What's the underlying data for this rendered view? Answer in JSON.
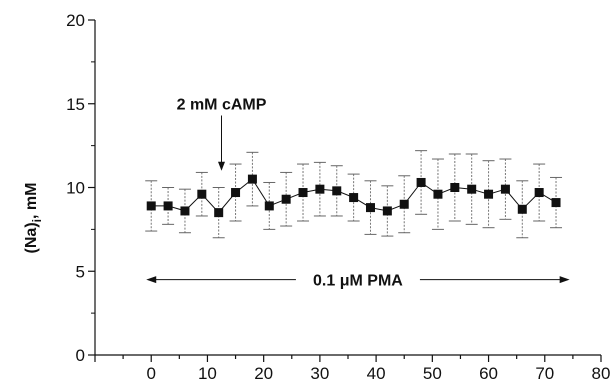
{
  "chart_data": {
    "type": "scatter",
    "title": "",
    "xlabel": "",
    "ylabel": "(Na)i, mM",
    "ylabel_main": "(Na)",
    "ylabel_sub": "i",
    "ylabel_unit": ", mM",
    "xlim": [
      -10,
      80
    ],
    "ylim": [
      0,
      20
    ],
    "x_ticks": [
      0,
      10,
      20,
      30,
      40,
      50,
      60,
      70,
      80
    ],
    "y_ticks": [
      0,
      5,
      10,
      15,
      20
    ],
    "grid": false,
    "legend": "none",
    "series": [
      {
        "x": [
          0,
          3,
          6,
          9,
          12,
          15,
          18,
          21,
          24,
          27,
          30,
          33,
          36,
          39,
          42,
          45,
          48,
          51,
          54,
          57,
          60,
          63,
          66,
          69,
          72
        ],
        "y": [
          8.9,
          8.9,
          8.6,
          9.6,
          8.5,
          9.7,
          10.5,
          8.9,
          9.3,
          9.7,
          9.9,
          9.8,
          9.4,
          8.8,
          8.6,
          9.0,
          10.3,
          9.6,
          10.0,
          9.9,
          9.6,
          9.9,
          8.7,
          9.7,
          9.1
        ],
        "err": [
          1.5,
          1.1,
          1.3,
          1.3,
          1.5,
          1.7,
          1.6,
          1.4,
          1.6,
          1.7,
          1.6,
          1.5,
          1.4,
          1.6,
          1.5,
          1.7,
          1.9,
          2.1,
          2.0,
          2.1,
          2.0,
          1.8,
          1.7,
          1.7,
          1.5
        ]
      }
    ],
    "annotations": {
      "camp_label": "2 mM cAMP",
      "camp_arrow_x": 12.5,
      "camp_arrow_y_top": 14.3,
      "camp_arrow_y_bottom": 11.0,
      "pma_label": "0.1 μM PMA",
      "pma_x_start": 0,
      "pma_x_end": 73,
      "pma_y": 4.5
    }
  }
}
